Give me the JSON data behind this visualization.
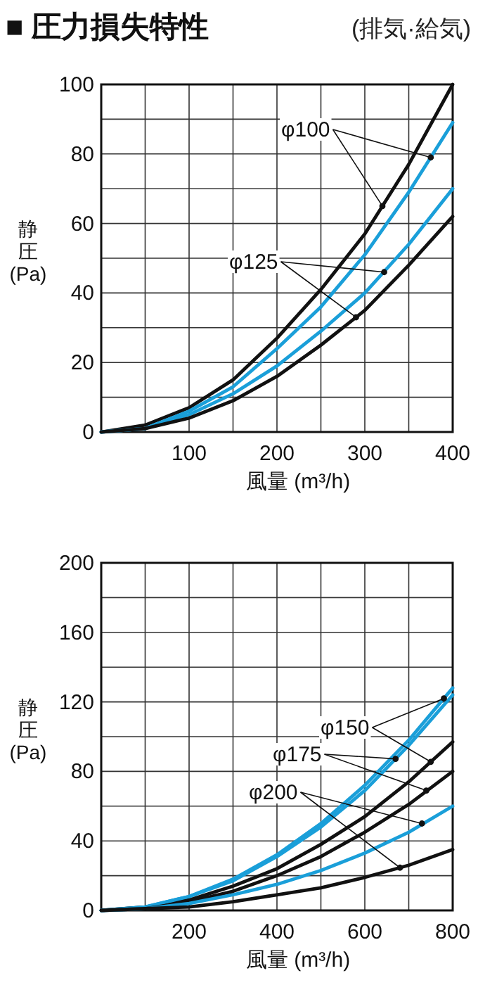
{
  "chart_data": [
    {
      "type": "line",
      "title": "■ 圧力損失特性",
      "subtitle": "(排気·給気)",
      "xlabel": "風量 (m³/h)",
      "ylabel": "静圧(Pa)",
      "x": [
        0,
        50,
        100,
        150,
        200,
        250,
        300,
        350,
        400
      ],
      "xlim": [
        0,
        400
      ],
      "xticks": [
        {
          "value": 0,
          "label": null
        },
        {
          "value": 50,
          "label": null
        },
        100,
        {
          "value": 150,
          "label": null
        },
        200,
        {
          "value": 250,
          "label": null
        },
        300,
        {
          "value": 350,
          "label": null
        },
        400
      ],
      "ylim": [
        0,
        100
      ],
      "yticks": [
        0,
        {
          "value": 10,
          "label": null
        },
        20,
        {
          "value": 30,
          "label": null
        },
        40,
        {
          "value": 50,
          "label": null
        },
        60,
        {
          "value": 70,
          "label": null
        },
        80,
        {
          "value": 90,
          "label": null
        },
        100
      ],
      "grid": true,
      "line_style": "solid",
      "annotations": [
        {
          "text": "φ100",
          "x": 320,
          "y": 65
        },
        {
          "text": "φ125",
          "x": 322,
          "y": 46
        }
      ],
      "series": [
        {
          "color": "#111111",
          "values": [
            0,
            2,
            7,
            15,
            27,
            41,
            57,
            77,
            100
          ]
        },
        {
          "color": "#1a9fd9",
          "values": [
            0,
            1,
            6,
            13,
            24,
            36,
            51,
            69,
            89
          ]
        },
        {
          "color": "#1a9fd9",
          "values": [
            0,
            1,
            5,
            11,
            19,
            29,
            40,
            54,
            70
          ]
        },
        {
          "color": "#111111",
          "values": [
            0,
            1,
            4,
            9,
            16,
            25,
            35,
            48,
            62
          ]
        }
      ]
    },
    {
      "type": "line",
      "xlabel": "風量 (m³/h)",
      "ylabel": "静圧(Pa)",
      "x": [
        0,
        100,
        200,
        300,
        400,
        500,
        600,
        700,
        800
      ],
      "xlim": [
        0,
        800
      ],
      "xticks": [
        {
          "value": 0,
          "label": null
        },
        {
          "value": 100,
          "label": null
        },
        200,
        {
          "value": 300,
          "label": null
        },
        400,
        {
          "value": 500,
          "label": null
        },
        600,
        {
          "value": 700,
          "label": null
        },
        800
      ],
      "ylim": [
        0,
        200
      ],
      "yticks": [
        0,
        {
          "value": 20,
          "label": null
        },
        40,
        {
          "value": 60,
          "label": null
        },
        80,
        {
          "value": 100,
          "label": null
        },
        120,
        {
          "value": 140,
          "label": null
        },
        160,
        {
          "value": 180,
          "label": null
        },
        200
      ],
      "grid": true,
      "line_style": "solid",
      "annotations": [
        {
          "text": "φ150",
          "x": 780,
          "y": 122
        },
        {
          "text": "φ175",
          "x": 740,
          "y": 69
        },
        {
          "text": "φ200",
          "x": 730,
          "y": 50
        }
      ],
      "series": [
        {
          "color": "#1a9fd9",
          "values": [
            0,
            2,
            8,
            18,
            32,
            50,
            72,
            98,
            128
          ]
        },
        {
          "color": "#111111",
          "values": [
            0,
            2,
            6,
            14,
            24,
            38,
            54,
            74,
            97
          ]
        },
        {
          "color": "#1a9fd9",
          "values": [
            0,
            2,
            8,
            17,
            31,
            48,
            69,
            95,
            124
          ]
        },
        {
          "color": "#111111",
          "values": [
            0,
            1,
            5,
            11,
            20,
            31,
            45,
            61,
            80
          ]
        },
        {
          "color": "#1a9fd9",
          "values": [
            0,
            1,
            4,
            9,
            15,
            23,
            33,
            45,
            60
          ]
        },
        {
          "color": "#111111",
          "values": [
            0,
            1,
            2,
            5,
            9,
            13,
            19,
            26,
            35
          ]
        }
      ]
    }
  ]
}
